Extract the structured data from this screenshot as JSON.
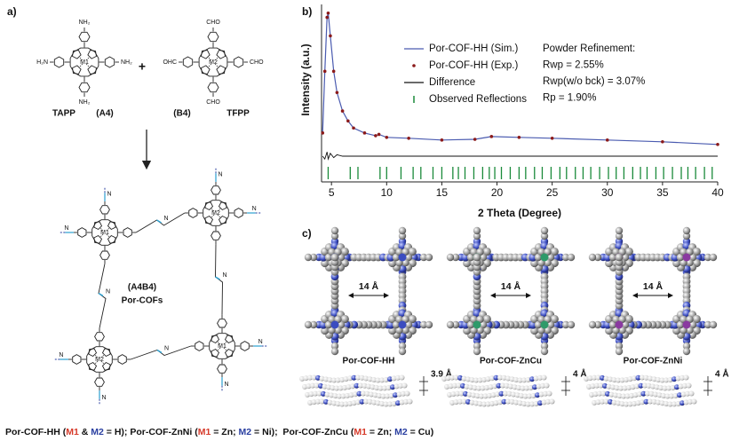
{
  "panel_a": {
    "label": "a)",
    "monomers": [
      {
        "name": "TAPP",
        "code": "(A4)",
        "group": "NH₂",
        "group_left": "H₂N",
        "metal": "M1"
      },
      {
        "name": "TFPP",
        "code": "(B4)",
        "group": "CHO",
        "group_left": "OHC",
        "metal": "M2"
      }
    ],
    "plus": "+",
    "product": {
      "code": "(A4B4)",
      "name": "Por-COFs",
      "imine_atom": "N",
      "metals": [
        {
          "text": "M1",
          "color": "#d63a2a"
        },
        {
          "text": "M2",
          "color": "#2a3fa0"
        }
      ]
    }
  },
  "panel_b": {
    "label": "b)",
    "chart_data": {
      "type": "line",
      "xlabel": "2 Theta (Degree)",
      "ylabel": "Intensity (a.u.)",
      "xlim": [
        4.1,
        40
      ],
      "ylim": [
        -22,
        100
      ],
      "xticks": [
        5,
        10,
        15,
        20,
        25,
        30,
        35,
        40
      ],
      "x": [
        4.2,
        4.4,
        4.6,
        4.7,
        4.9,
        5.2,
        5.5,
        6,
        6.5,
        7,
        8,
        9,
        9.3,
        10,
        12,
        15,
        18,
        19.5,
        22,
        25,
        30,
        35,
        40
      ],
      "series": [
        {
          "name": "Por-COF-HH (Sim.)",
          "style": "line",
          "color": "#4a5bb0",
          "values": [
            12.5,
            56,
            94,
            97,
            81,
            56,
            41,
            28,
            21,
            16,
            12.5,
            10.6,
            11.5,
            9.4,
            8.8,
            7.5,
            8,
            10,
            9.4,
            8.8,
            7.5,
            6.3,
            4.4
          ]
        },
        {
          "name": "Por-COF-HH (Exp.)",
          "style": "dots",
          "color": "#8b1a1a",
          "values": [
            12.5,
            56,
            94,
            97,
            81,
            56,
            41,
            28,
            21,
            16,
            12.5,
            10.6,
            11.5,
            9.4,
            8.8,
            7.5,
            8,
            10,
            9.4,
            8.8,
            7.5,
            6.3,
            4.4
          ]
        },
        {
          "name": "Difference",
          "style": "difference",
          "color": "#111111",
          "values": [
            0,
            -2,
            3,
            -2,
            2,
            -1,
            1,
            0,
            0,
            0,
            0,
            0,
            0,
            0,
            0,
            0,
            0,
            0,
            0,
            0,
            0,
            0,
            0
          ]
        },
        {
          "name": "Observed Reflections",
          "style": "reflections",
          "color": "#1a8a3a",
          "x": [
            4.7,
            6.7,
            7.4,
            9.4,
            10.0,
            11.3,
            12.4,
            13.1,
            14.2,
            15.0,
            16.0,
            16.5,
            17.1,
            17.9,
            18.7,
            19.3,
            19.8,
            20.4,
            21.2,
            22.0,
            22.6,
            23.4,
            24.1,
            24.9,
            25.7,
            26.3,
            27.1,
            27.8,
            28.5,
            29.3,
            30.1,
            30.8,
            31.5,
            32.3,
            33.0,
            33.6,
            34.4,
            35.1,
            35.9,
            36.7,
            37.3,
            38.0,
            38.8,
            39.5
          ]
        }
      ],
      "refinement": [
        "Powder Refinement:",
        "Rwp = 2.55%",
        "Rwp(w/o bck) = 3.07%",
        "Rp = 1.90%"
      ]
    }
  },
  "panel_c": {
    "label": "c)",
    "pore": "14 Å",
    "structures": [
      {
        "name": "Por-COF-HH",
        "spacing": "3.9 Å"
      },
      {
        "name": "Por-COF-ZnCu",
        "spacing": "4 Å"
      },
      {
        "name": "Por-COF-ZnNi",
        "spacing": "4 Å"
      }
    ]
  },
  "caption": [
    {
      "text": "Por-COF-HH (",
      "color": "#111111"
    },
    {
      "text": "M1",
      "color": "#d63a2a"
    },
    {
      "text": " & ",
      "color": "#111111"
    },
    {
      "text": "M2",
      "color": "#2a3fa0"
    },
    {
      "text": " = H); Por-COF-ZnNi (",
      "color": "#111111"
    },
    {
      "text": "M1",
      "color": "#d63a2a"
    },
    {
      "text": " = Zn; ",
      "color": "#111111"
    },
    {
      "text": "M2",
      "color": "#2a3fa0"
    },
    {
      "text": " = Ni);  Por-COF-ZnCu (",
      "color": "#111111"
    },
    {
      "text": "M1",
      "color": "#d63a2a"
    },
    {
      "text": " = Zn; ",
      "color": "#111111"
    },
    {
      "text": "M2",
      "color": "#2a3fa0"
    },
    {
      "text": " = Cu)",
      "color": "#111111"
    }
  ]
}
